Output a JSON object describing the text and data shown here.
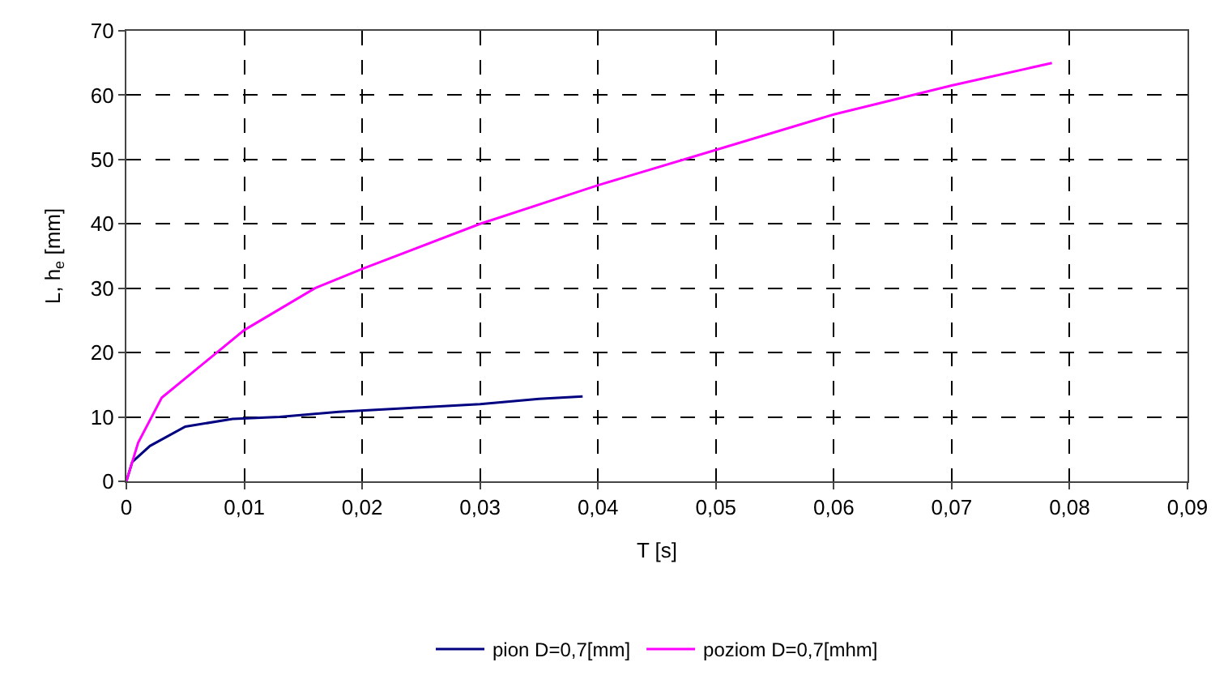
{
  "chart_data": {
    "type": "line",
    "xlabel": "T [s]",
    "ylabel": "L, h$_{e}$ [mm]",
    "xlim": [
      0,
      0.09
    ],
    "xticks": [
      0,
      {
        "value": 0.01,
        "label": "0,01"
      },
      {
        "value": 0.02,
        "label": "0,02"
      },
      {
        "value": 0.03,
        "label": "0,03"
      },
      {
        "value": 0.04,
        "label": "0,04"
      },
      {
        "value": 0.05,
        "label": "0,05"
      },
      {
        "value": 0.06,
        "label": "0,06"
      },
      {
        "value": 0.07,
        "label": "0,07"
      },
      {
        "value": 0.08,
        "label": "0,08"
      },
      {
        "value": 0.09,
        "label": "0,09"
      }
    ],
    "ylim": [
      0,
      70
    ],
    "yticks": [
      0,
      10,
      20,
      30,
      40,
      50,
      60,
      70
    ],
    "grid": true,
    "legend": "bottom",
    "marker": "none",
    "line_style": "solid",
    "series": [
      {
        "name": "pion D=0,7[mm]",
        "color": "#000080",
        "x": [
          0,
          0.0005,
          0.002,
          0.005,
          0.009,
          0.013,
          0.018,
          0.025,
          0.03,
          0.035,
          0.0387
        ],
        "values": [
          0,
          3,
          5.5,
          8.5,
          9.7,
          10,
          10.8,
          11.5,
          12,
          12.8,
          13.2
        ]
      },
      {
        "name": "poziom D=0,7[mhm]",
        "color": "#ff00ff",
        "x": [
          0,
          0.001,
          0.003,
          0.007,
          0.01,
          0.016,
          0.02,
          0.03,
          0.04,
          0.05,
          0.06,
          0.07,
          0.0785
        ],
        "values": [
          0,
          6,
          13,
          19,
          23.5,
          30,
          33,
          40,
          46,
          51.5,
          57,
          61.5,
          65
        ]
      }
    ]
  }
}
